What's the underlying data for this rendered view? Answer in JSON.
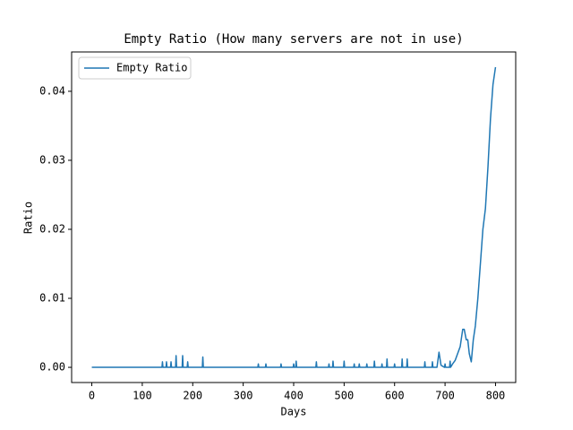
{
  "chart_data": {
    "type": "line",
    "title": "Empty Ratio (How many servers are not in use)",
    "x_label": "Days",
    "y_label": "Ratio",
    "legend": "upper left",
    "xlim": [
      -40,
      840
    ],
    "xticks": [
      0,
      100,
      200,
      300,
      400,
      500,
      600,
      700,
      800
    ],
    "ylim": [
      -0.0022,
      0.0457
    ],
    "yticks": [
      {
        "value": 0,
        "label": "0.00"
      },
      {
        "value": 0.01,
        "label": "0.01"
      },
      {
        "value": 0.02,
        "label": "0.02"
      },
      {
        "value": 0.03,
        "label": "0.03"
      },
      {
        "value": 0.04,
        "label": "0.04"
      }
    ],
    "x": [
      0,
      139,
      140,
      141,
      147,
      148,
      149,
      156,
      157,
      158,
      166,
      167,
      168,
      179,
      180,
      181,
      189,
      190,
      191,
      219,
      220,
      221,
      329,
      330,
      331,
      344,
      345,
      346,
      374,
      375,
      376,
      399,
      400,
      401,
      404,
      405,
      406,
      444,
      445,
      446,
      469,
      470,
      471,
      477,
      478,
      479,
      499,
      500,
      501,
      519,
      520,
      521,
      529,
      530,
      531,
      544,
      545,
      546,
      559,
      560,
      561,
      574,
      575,
      576,
      584,
      585,
      586,
      599,
      600,
      601,
      614,
      615,
      616,
      624,
      625,
      626,
      659,
      660,
      661,
      674,
      675,
      676,
      684,
      688,
      692,
      699,
      700,
      701,
      709,
      710,
      711,
      715,
      720,
      725,
      730,
      735,
      738,
      742,
      745,
      748,
      752,
      756,
      760,
      765,
      770,
      775,
      780,
      785,
      790,
      795,
      800
    ],
    "series": [
      {
        "name": "Empty Ratio",
        "color": "#1f77b4",
        "values": [
          0,
          0,
          0.0008,
          0,
          0,
          0.0008,
          0,
          0,
          0.0008,
          0,
          0,
          0.0017,
          0,
          0,
          0.0017,
          0,
          0,
          0.0008,
          0,
          0,
          0.0015,
          0,
          0,
          0.0005,
          0,
          0,
          0.0005,
          0,
          0,
          0.0005,
          0,
          0,
          0.0005,
          0,
          0,
          0.0009,
          0,
          0,
          0.0008,
          0,
          0,
          0.0005,
          0,
          0,
          0.0009,
          0,
          0,
          0.0009,
          0,
          0,
          0.0005,
          0,
          0,
          0.0005,
          0,
          0,
          0.0005,
          0,
          0,
          0.0009,
          0,
          0,
          0.0005,
          0,
          0,
          0.0012,
          0,
          0,
          0.0005,
          0,
          0,
          0.0012,
          0,
          0,
          0.0012,
          0,
          0,
          0.0008,
          0,
          0,
          0.0008,
          0,
          0,
          0.0022,
          0.0003,
          0,
          0.0005,
          0,
          0,
          0.0009,
          0,
          0.0005,
          0.001,
          0.002,
          0.003,
          0.0055,
          0.0055,
          0.004,
          0.004,
          0.002,
          0.0008,
          0.004,
          0.006,
          0.01,
          0.015,
          0.02,
          0.023,
          0.029,
          0.036,
          0.041,
          0.0435
        ]
      }
    ]
  }
}
